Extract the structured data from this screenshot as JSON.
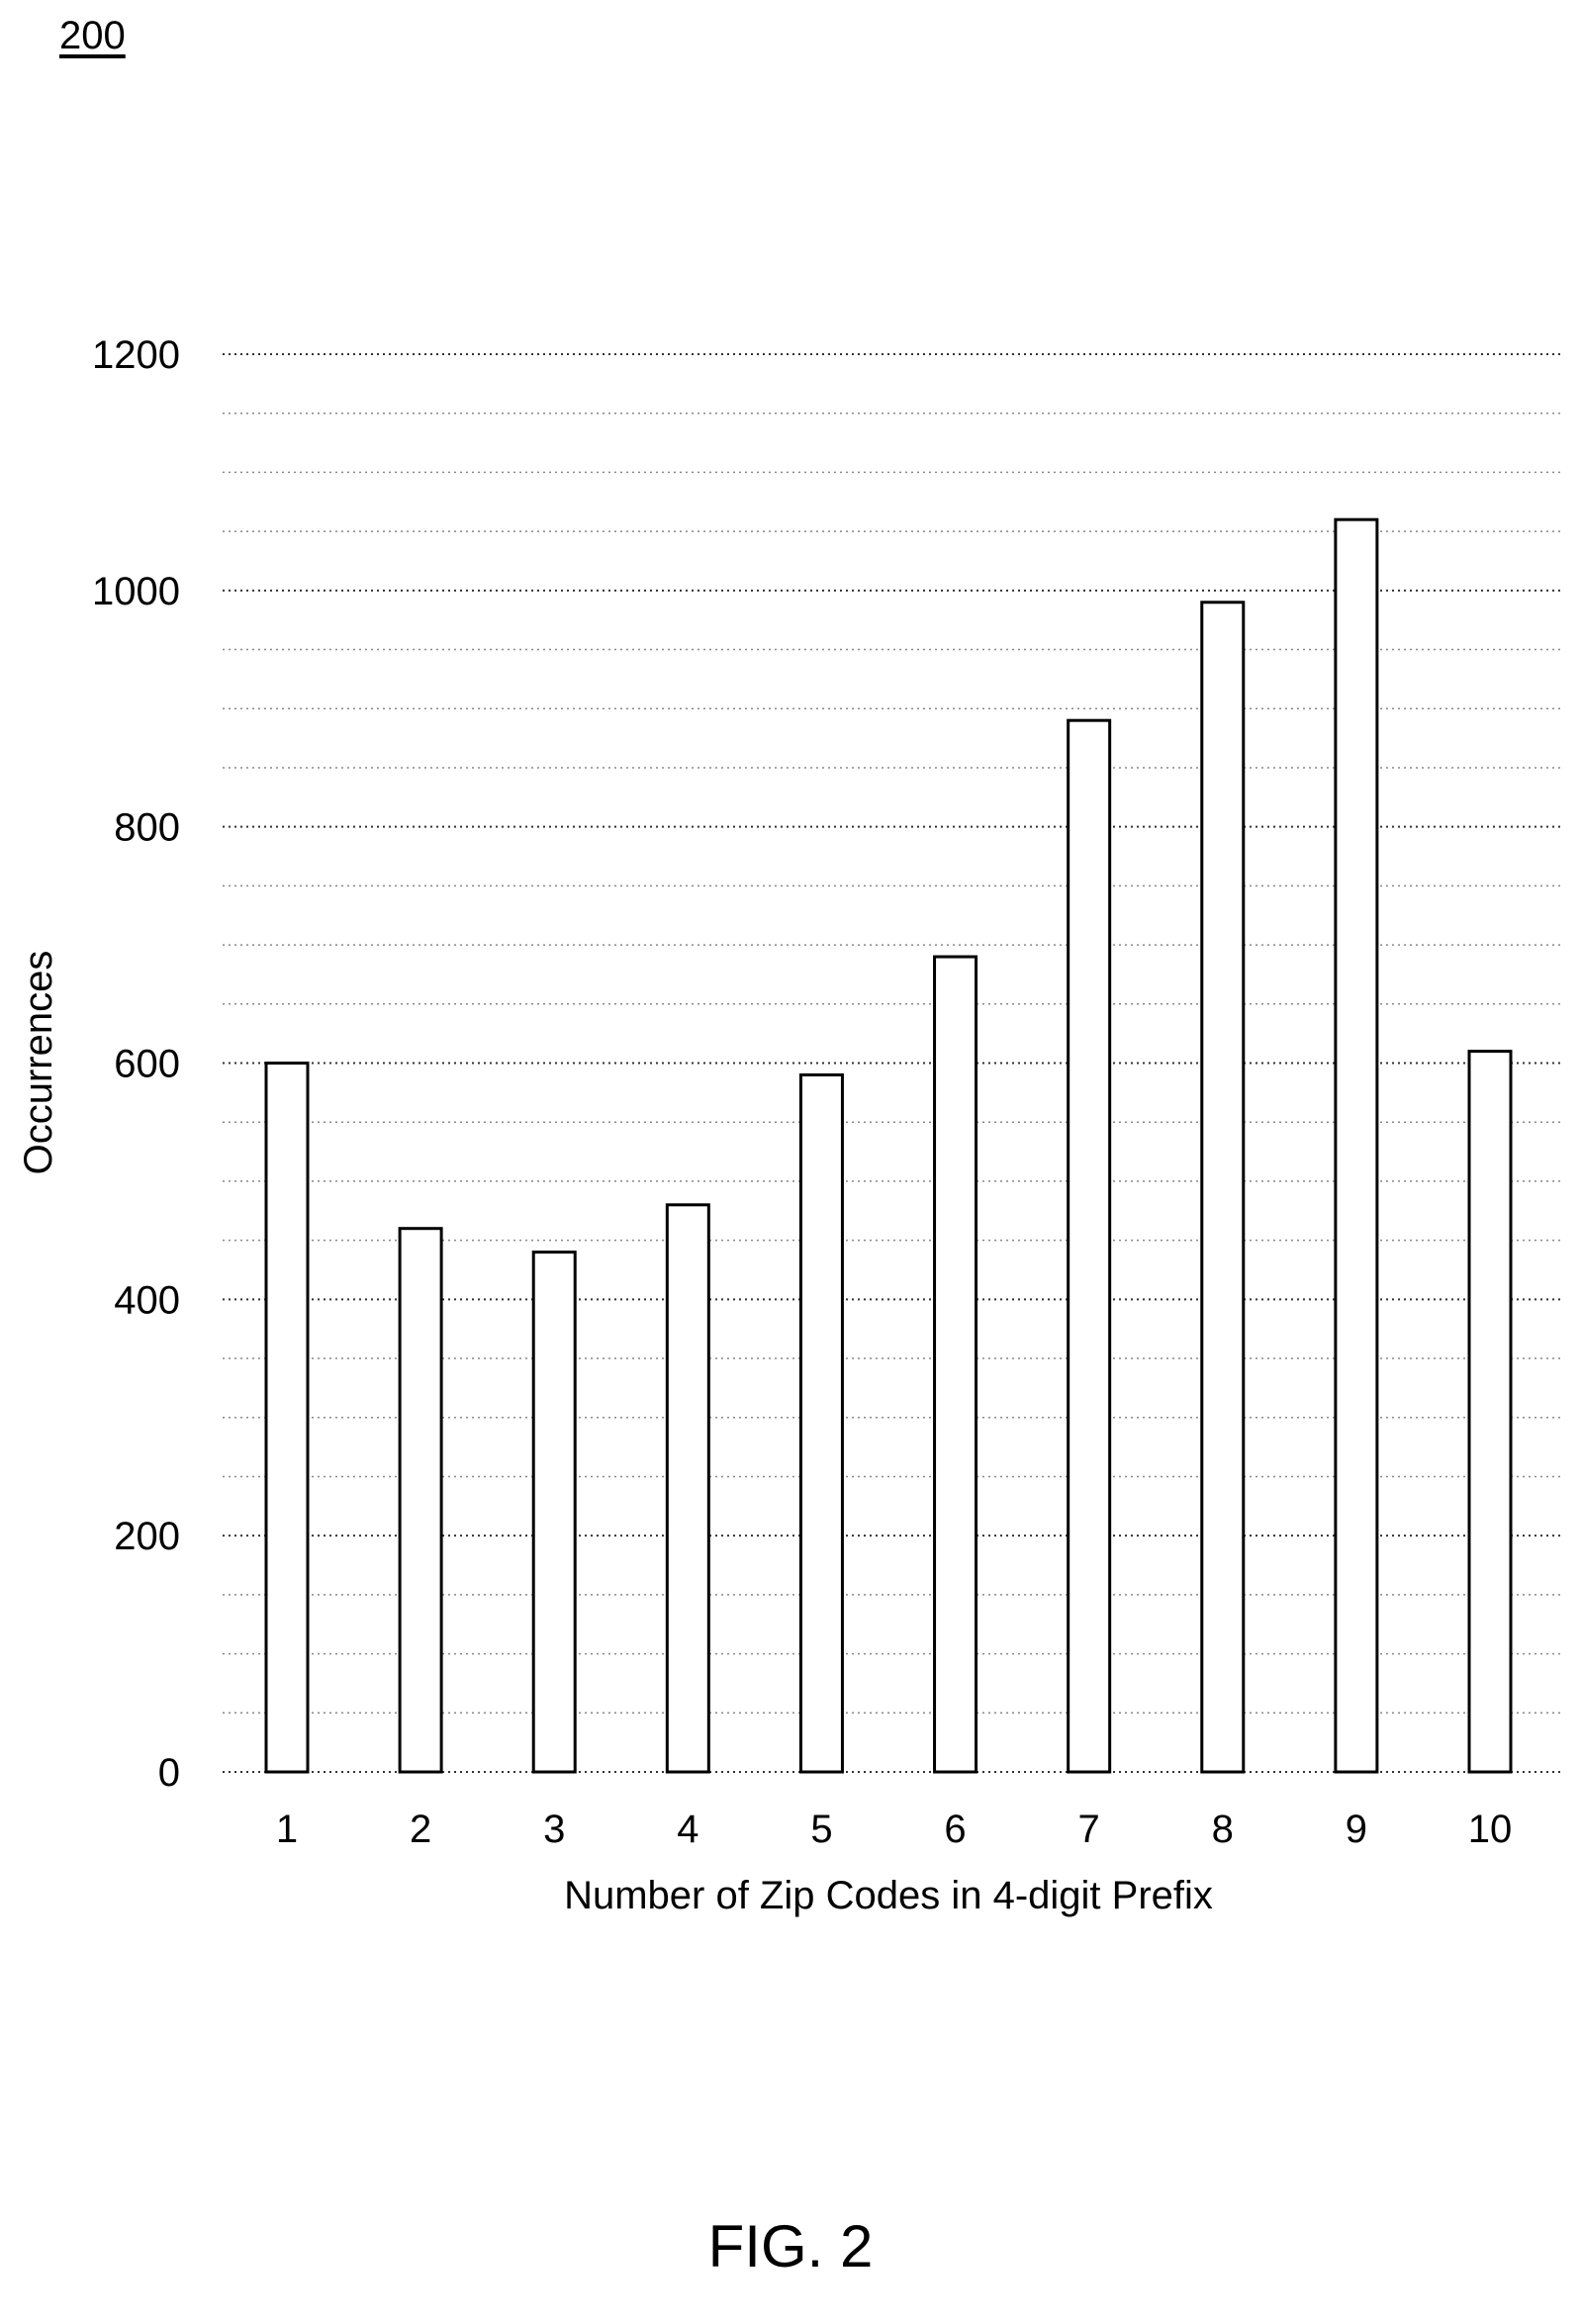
{
  "figure_ref": "200",
  "caption": "FIG. 2",
  "chart_data": {
    "type": "bar",
    "categories": [
      "1",
      "2",
      "3",
      "4",
      "5",
      "6",
      "7",
      "8",
      "9",
      "10"
    ],
    "values": [
      600,
      460,
      440,
      480,
      590,
      690,
      890,
      990,
      1060,
      610
    ],
    "xlabel": "Number of Zip Codes in 4-digit Prefix",
    "ylabel": "Occurrences",
    "ylim": [
      0,
      1200
    ],
    "y_major_ticks": [
      0,
      200,
      400,
      600,
      800,
      1000,
      1200
    ],
    "y_minor_step": 50,
    "grid": "horizontal dotted",
    "bar_fill": "#ffffff",
    "bar_stroke": "#000000"
  }
}
